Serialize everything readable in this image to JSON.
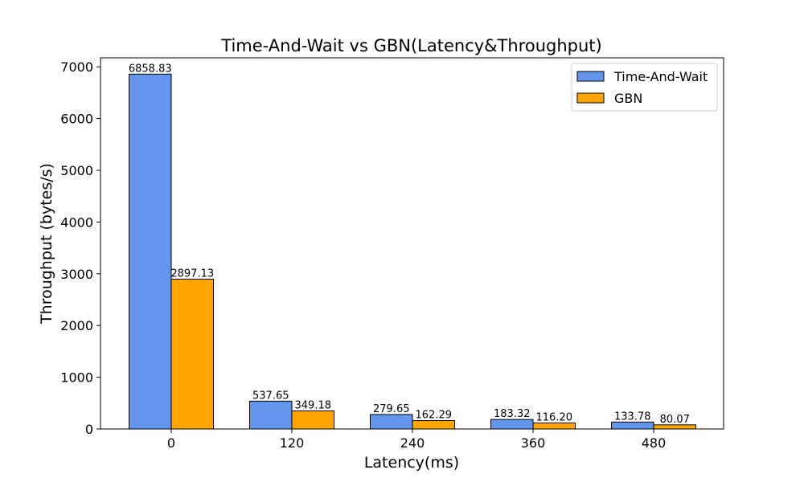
{
  "chart_data": {
    "type": "bar",
    "title": "Time-And-Wait vs GBN(Latency&Throughput)",
    "xlabel": "Latency(ms)",
    "ylabel": "Throughput (bytes/s)",
    "categories": [
      "0",
      "120",
      "240",
      "360",
      "480"
    ],
    "series": [
      {
        "name": "Time-And-Wait",
        "color": "#6495ED",
        "values": [
          6858.83,
          537.65,
          279.65,
          183.32,
          133.78
        ],
        "labels": [
          "6858.83",
          "537.65",
          "279.65",
          "183.32",
          "133.78"
        ]
      },
      {
        "name": "GBN",
        "color": "#FFA500",
        "values": [
          2897.13,
          349.18,
          162.29,
          116.2,
          80.07
        ],
        "labels": [
          "2897.13",
          "349.18",
          "162.29",
          "116.20",
          "80.07"
        ]
      }
    ],
    "yticks": [
      "0",
      "1000",
      "2000",
      "3000",
      "4000",
      "5000",
      "6000",
      "7000"
    ],
    "ylim": [
      0,
      7200
    ],
    "grid": false,
    "legend_position": "top-right"
  }
}
